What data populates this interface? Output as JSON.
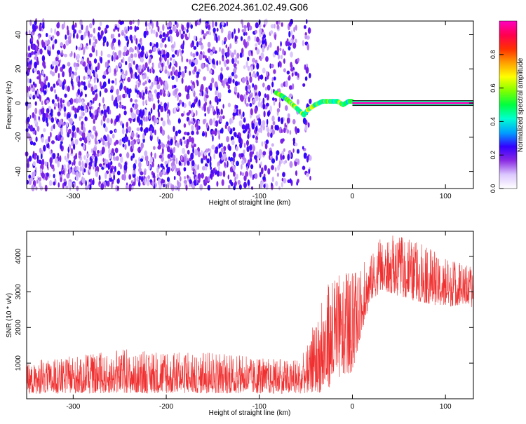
{
  "title": "C2E6.2024.361.02.49.G06",
  "chart_data": [
    {
      "type": "heatmap",
      "xlabel": "Height of straight line (km)",
      "ylabel": "Frequency (Hz)",
      "xlim": [
        -350,
        130
      ],
      "ylim": [
        -50,
        48
      ],
      "xticks": [
        -300,
        -200,
        -100,
        0,
        100
      ],
      "yticks": [
        -40,
        -20,
        0,
        20,
        40
      ],
      "grid": false,
      "colorbar": {
        "label": "Normalized spectral amplitude",
        "range": [
          0,
          1
        ],
        "ticks": [
          0.0,
          0.2,
          0.4,
          0.6,
          0.8
        ],
        "colormap": [
          "#ffffff",
          "#dcc8ff",
          "#8a2be2",
          "#3300ff",
          "#00a0ff",
          "#00ffd0",
          "#00ff40",
          "#80ff00",
          "#ffff00",
          "#ffa000",
          "#ff3000",
          "#ff0050",
          "#ff00c0"
        ]
      },
      "features": {
        "noise_region_x": [
          -350,
          -45
        ],
        "gap_x": [
          -58,
          -53
        ],
        "chirp": [
          [
            -82,
            6
          ],
          [
            -75,
            4
          ],
          [
            -70,
            2
          ],
          [
            -64,
            -1
          ],
          [
            -58,
            -4
          ],
          [
            -52,
            -7
          ],
          [
            -48,
            -4
          ],
          [
            -40,
            -1
          ],
          [
            -32,
            1
          ],
          [
            -24,
            1
          ],
          [
            -16,
            1
          ],
          [
            -10,
            -1
          ],
          [
            -4,
            1
          ],
          [
            0,
            1
          ]
        ],
        "steady_line": {
          "x": [
            0,
            130
          ],
          "freq": 0,
          "amplitude": 1.0
        }
      }
    },
    {
      "type": "line",
      "xlabel": "Height of straight line (km)",
      "ylabel": "SNR (10 * v/v)",
      "xlim": [
        -350,
        130
      ],
      "ylim": [
        0,
        4700
      ],
      "xticks": [
        -300,
        -200,
        -100,
        0,
        100
      ],
      "yticks": [
        1000,
        2000,
        3000,
        4000
      ],
      "grid": false,
      "series": [
        {
          "color": "#f03030",
          "envelope": {
            "x": [
              -350,
              -300,
              -250,
              -200,
              -150,
              -100,
              -70,
              -55,
              -45,
              -40,
              -35,
              -30,
              -20,
              -10,
              0,
              10,
              20,
              30,
              40,
              60,
              80,
              100,
              120,
              130
            ],
            "low": [
              100,
              100,
              100,
              100,
              100,
              100,
              100,
              100,
              100,
              100,
              50,
              50,
              300,
              500,
              600,
              1800,
              2700,
              2900,
              2900,
              2700,
              2600,
              2500,
              2600,
              2500
            ],
            "high": [
              1050,
              1200,
              1400,
              1300,
              1300,
              1150,
              1100,
              1200,
              1700,
              2400,
              2700,
              3200,
              3500,
              3600,
              3600,
              3700,
              4200,
              4500,
              4600,
              4500,
              4300,
              4000,
              3800,
              3700
            ]
          }
        }
      ]
    }
  ]
}
